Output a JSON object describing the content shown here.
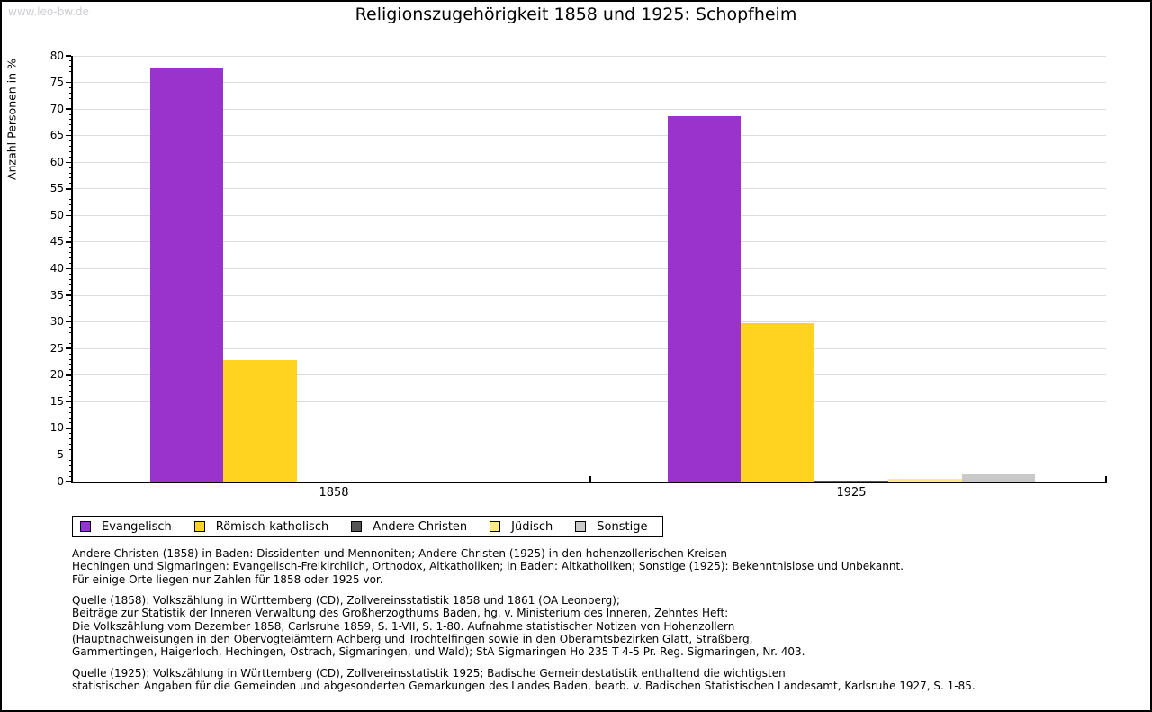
{
  "watermark": "www.leo-bw.de",
  "chart_data": {
    "type": "bar",
    "title": "Religionszugehörigkeit 1858 und 1925: Schopfheim",
    "ylabel": "Anzahl Personen in %",
    "xlabel": "",
    "categories": [
      "1858",
      "1925"
    ],
    "series": [
      {
        "name": "Evangelisch",
        "color": "#9933cc",
        "values": [
          77.8,
          68.6
        ]
      },
      {
        "name": "Römisch-katholisch",
        "color": "#ffd320",
        "values": [
          22.8,
          29.7
        ]
      },
      {
        "name": "Andere Christen",
        "color": "#555555",
        "values": [
          0,
          0.2
        ]
      },
      {
        "name": "Jüdisch",
        "color": "#ffeb80",
        "values": [
          0,
          0.5
        ]
      },
      {
        "name": "Sonstige",
        "color": "#c9c9c9",
        "values": [
          0,
          1.3
        ]
      }
    ],
    "ylim": [
      0,
      80
    ],
    "ytick_step": 5,
    "grid": true,
    "legend_position": "bottom"
  },
  "footnotes": [
    [
      "Andere Christen (1858) in Baden: Dissidenten und Mennoniten; Andere Christen (1925) in den hohenzollerischen Kreisen",
      "Hechingen und Sigmaringen: Evangelisch-Freikirchlich, Orthodox, Altkatholiken; in Baden: Altkatholiken; Sonstige (1925): Bekenntnislose und Unbekannt.",
      "Für einige Orte liegen nur Zahlen für 1858 oder 1925 vor."
    ],
    [
      "Quelle (1858): Volkszählung in Württemberg (CD), Zollvereinsstatistik 1858 und 1861 (OA Leonberg);",
      "Beiträge zur Statistik der Inneren Verwaltung des Großherzogthums Baden, hg. v. Ministerium des Inneren, Zehntes Heft:",
      "Die Volkszählung vom Dezember 1858, Carlsruhe 1859, S. 1-VII, S. 1-80. Aufnahme statistischer Notizen von Hohenzollern",
      "(Hauptnachweisungen in den Obervogteiämtern Achberg und Trochtelfingen sowie in den Oberamtsbezirken Glatt, Straßberg,",
      "Gammertingen, Haigerloch, Hechingen, Ostrach, Sigmaringen, und Wald); StA Sigmaringen Ho 235 T 4-5 Pr. Reg. Sigmaringen, Nr. 403."
    ],
    [
      "Quelle (1925): Volkszählung in Württemberg (CD), Zollvereinsstatistik 1925; Badische Gemeindestatistik enthaltend die wichtigsten",
      "statistischen Angaben für die Gemeinden und abgesonderten Gemarkungen des Landes Baden, bearb. v. Badischen Statistischen Landesamt, Karlsruhe 1927, S. 1-85."
    ]
  ]
}
